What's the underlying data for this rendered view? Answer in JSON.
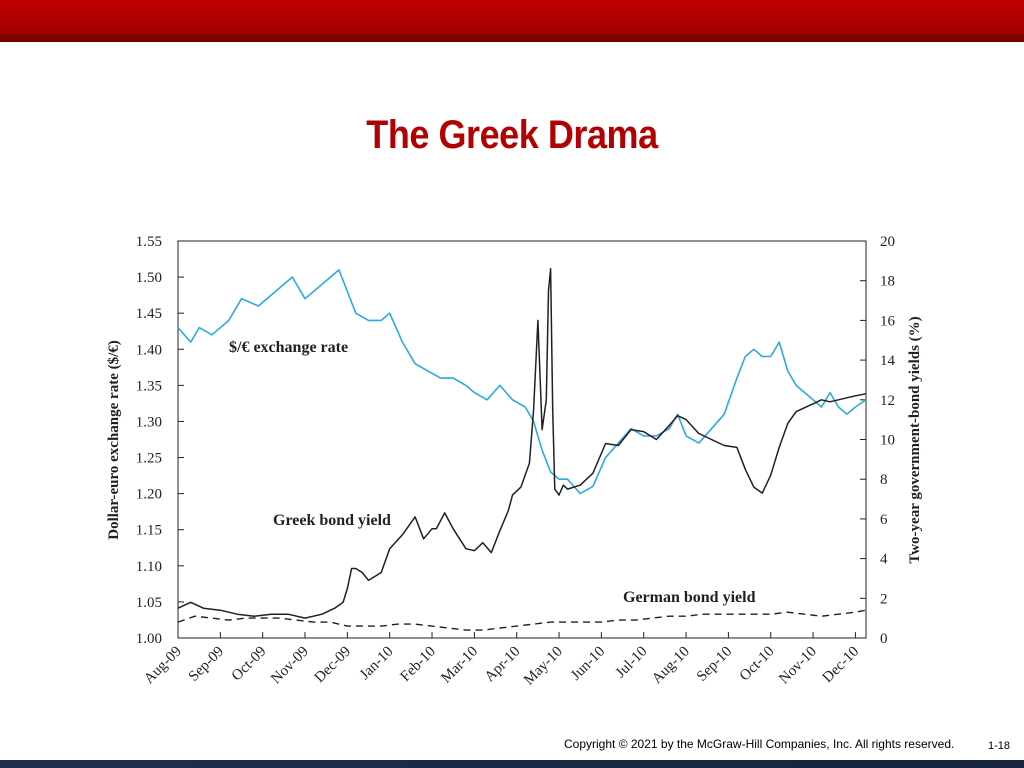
{
  "slide": {
    "title": "The Greek Drama",
    "copyright": "Copyright © 2021 by the McGraw-Hill Companies, Inc. All rights reserved.",
    "page_number": "1-18"
  },
  "colors": {
    "header_bar": "#b00000",
    "title": "#b30000",
    "exchange_rate_line": "#29abe2",
    "greek_yield_line": "#231f20",
    "german_yield_line": "#231f20",
    "footer_bar": "#1e2f4f"
  },
  "chart_data": {
    "type": "line",
    "x_tick_labels": [
      "Aug-09",
      "Sep-09",
      "Oct-09",
      "Nov-09",
      "Dec-09",
      "Jan-10",
      "Feb-10",
      "Mar-10",
      "Apr-10",
      "May-10",
      "Jun-10",
      "Jul-10",
      "Aug-10",
      "Sep-10",
      "Oct-10",
      "Nov-10",
      "Dec-10"
    ],
    "xlim": [
      0,
      16.25
    ],
    "y_left": {
      "label": "Dollar-euro exchange rate ($/€)",
      "range": [
        1.0,
        1.55
      ],
      "ticks": [
        "1.00",
        "1.05",
        "1.10",
        "1.15",
        "1.20",
        "1.25",
        "1.30",
        "1.35",
        "1.40",
        "1.45",
        "1.50",
        "1.55"
      ]
    },
    "y_right": {
      "label": "Two-year government-bond yields (%)",
      "range": [
        0,
        20
      ],
      "ticks": [
        "0",
        "2",
        "4",
        "6",
        "8",
        "10",
        "12",
        "14",
        "16",
        "18",
        "20"
      ]
    },
    "grid": false,
    "series": [
      {
        "name": "$/€ exchange rate",
        "axis": "left",
        "style": "solid",
        "x": [
          0,
          0.3,
          0.5,
          0.8,
          1.2,
          1.5,
          1.9,
          2.3,
          2.7,
          3.0,
          3.2,
          3.4,
          3.6,
          3.8,
          4.0,
          4.2,
          4.5,
          4.8,
          5.0,
          5.3,
          5.6,
          5.9,
          6.2,
          6.5,
          6.8,
          7.0,
          7.3,
          7.6,
          7.9,
          8.2,
          8.4,
          8.6,
          8.8,
          9.0,
          9.2,
          9.5,
          9.8,
          10.1,
          10.4,
          10.7,
          11.0,
          11.3,
          11.6,
          11.8,
          12.0,
          12.3,
          12.6,
          12.9,
          13.2,
          13.4,
          13.6,
          13.8,
          14.0,
          14.2,
          14.4,
          14.6,
          14.8,
          15.0,
          15.2,
          15.4,
          15.6,
          15.8,
          16.0,
          16.25
        ],
        "values": [
          1.43,
          1.41,
          1.43,
          1.42,
          1.44,
          1.47,
          1.46,
          1.48,
          1.5,
          1.47,
          1.48,
          1.49,
          1.5,
          1.51,
          1.48,
          1.45,
          1.44,
          1.44,
          1.45,
          1.41,
          1.38,
          1.37,
          1.36,
          1.36,
          1.35,
          1.34,
          1.33,
          1.35,
          1.33,
          1.32,
          1.3,
          1.26,
          1.23,
          1.22,
          1.22,
          1.2,
          1.21,
          1.25,
          1.27,
          1.29,
          1.28,
          1.28,
          1.29,
          1.31,
          1.28,
          1.27,
          1.29,
          1.31,
          1.36,
          1.39,
          1.4,
          1.39,
          1.39,
          1.41,
          1.37,
          1.35,
          1.34,
          1.33,
          1.32,
          1.34,
          1.32,
          1.31,
          1.32,
          1.33
        ]
      },
      {
        "name": "Greek bond yield",
        "axis": "right",
        "style": "solid",
        "x": [
          0,
          0.3,
          0.6,
          1.0,
          1.4,
          1.8,
          2.2,
          2.6,
          3.0,
          3.4,
          3.7,
          3.9,
          4.0,
          4.1,
          4.2,
          4.35,
          4.5,
          4.8,
          5.0,
          5.3,
          5.6,
          5.8,
          6.0,
          6.1,
          6.3,
          6.5,
          6.8,
          7.0,
          7.2,
          7.4,
          7.6,
          7.8,
          7.9,
          8.1,
          8.3,
          8.4,
          8.5,
          8.6,
          8.7,
          8.75,
          8.8,
          8.85,
          8.9,
          9.0,
          9.1,
          9.2,
          9.5,
          9.8,
          10.1,
          10.4,
          10.7,
          11.0,
          11.3,
          11.6,
          11.8,
          12.0,
          12.3,
          12.6,
          12.9,
          13.2,
          13.4,
          13.6,
          13.8,
          14.0,
          14.2,
          14.4,
          14.6,
          14.8,
          15.0,
          15.2,
          15.4,
          15.6,
          15.8,
          16.0,
          16.25
        ],
        "values": [
          1.5,
          1.8,
          1.5,
          1.4,
          1.2,
          1.1,
          1.2,
          1.2,
          1.0,
          1.2,
          1.5,
          1.8,
          2.5,
          3.5,
          3.5,
          3.3,
          2.9,
          3.3,
          4.5,
          5.2,
          6.1,
          5.0,
          5.5,
          5.5,
          6.3,
          5.5,
          4.5,
          4.4,
          4.8,
          4.3,
          5.4,
          6.4,
          7.2,
          7.6,
          8.8,
          11.5,
          16.0,
          10.5,
          12.0,
          17.5,
          18.6,
          11.5,
          7.5,
          7.2,
          7.7,
          7.5,
          7.7,
          8.3,
          9.8,
          9.7,
          10.5,
          10.4,
          10.0,
          10.7,
          11.2,
          11.0,
          10.3,
          10.0,
          9.7,
          9.6,
          8.5,
          7.6,
          7.3,
          8.2,
          9.6,
          10.8,
          11.4,
          11.6,
          11.8,
          12.0,
          11.9,
          12.0,
          12.1,
          12.2,
          12.3
        ]
      },
      {
        "name": "German bond yield",
        "axis": "right",
        "style": "dashed",
        "x": [
          0,
          0.4,
          0.8,
          1.2,
          1.6,
          2.0,
          2.4,
          2.8,
          3.2,
          3.6,
          4.0,
          4.4,
          4.8,
          5.2,
          5.6,
          6.0,
          6.4,
          6.8,
          7.2,
          7.6,
          8.0,
          8.4,
          8.8,
          9.2,
          9.6,
          10.0,
          10.4,
          10.8,
          11.2,
          11.6,
          12.0,
          12.4,
          12.8,
          13.2,
          13.6,
          14.0,
          14.4,
          14.8,
          15.2,
          15.6,
          16.0,
          16.25
        ],
        "values": [
          0.8,
          1.1,
          1.0,
          0.9,
          1.0,
          1.0,
          1.0,
          0.9,
          0.8,
          0.8,
          0.6,
          0.6,
          0.6,
          0.7,
          0.7,
          0.6,
          0.5,
          0.4,
          0.4,
          0.5,
          0.6,
          0.7,
          0.8,
          0.8,
          0.8,
          0.8,
          0.9,
          0.9,
          1.0,
          1.1,
          1.1,
          1.2,
          1.2,
          1.2,
          1.2,
          1.2,
          1.3,
          1.2,
          1.1,
          1.2,
          1.3,
          1.4
        ]
      }
    ],
    "annotations": [
      {
        "text": "$/€ exchange rate",
        "series": 0
      },
      {
        "text": "Greek bond yield",
        "series": 1
      },
      {
        "text": "German bond yield",
        "series": 2
      }
    ]
  }
}
